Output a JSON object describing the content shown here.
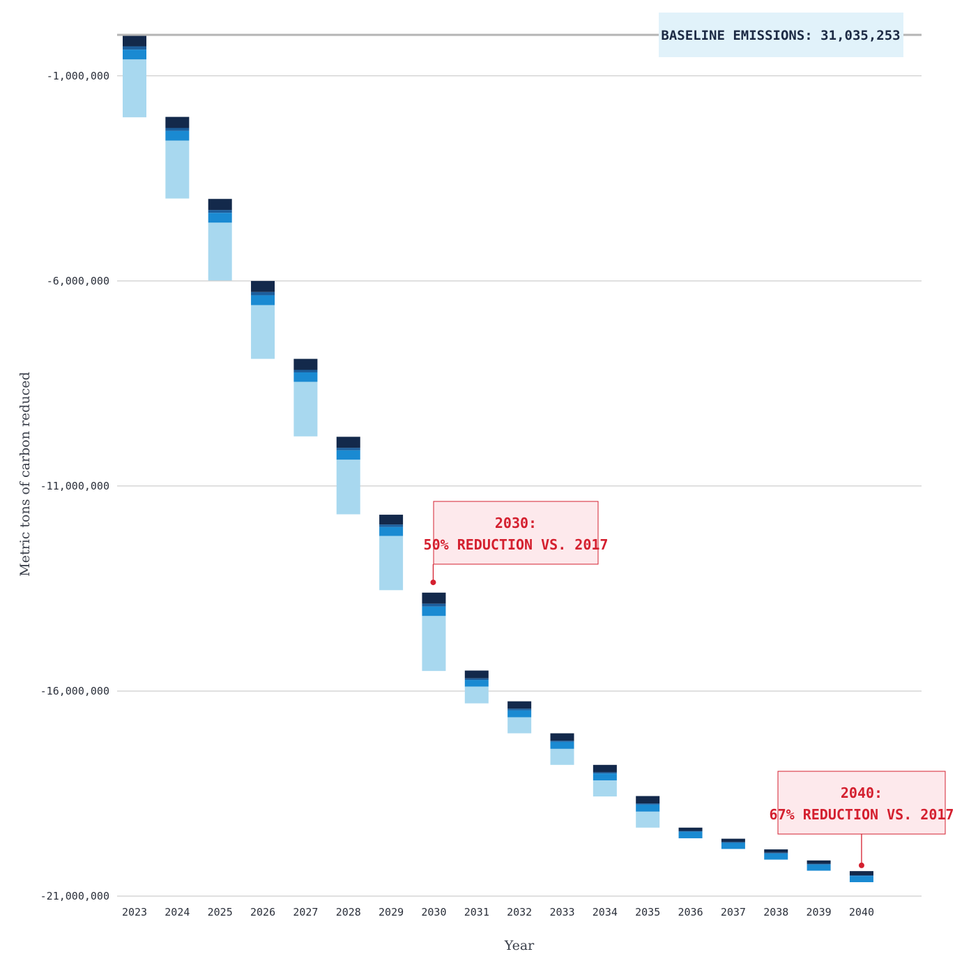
{
  "chart_data": {
    "type": "bar",
    "stacked": true,
    "floating": true,
    "title": "",
    "xlabel": "Year",
    "ylabel": "Metric tons of carbon reduced",
    "ylim": [
      -21000000,
      1000000
    ],
    "yticks": [
      -1000000,
      -6000000,
      -11000000,
      -16000000,
      -21000000
    ],
    "ytick_labels": [
      "-1,000,000",
      "-6,000,000",
      "-11,000,000",
      "-16,000,000",
      "-21,000,000"
    ],
    "grid": true,
    "categories": [
      "2023",
      "2024",
      "2025",
      "2026",
      "2027",
      "2028",
      "2029",
      "2030",
      "2031",
      "2032",
      "2033",
      "2034",
      "2035",
      "2036",
      "2037",
      "2038",
      "2039",
      "2040"
    ],
    "bar_top": [
      0,
      -2000000,
      -4000000,
      -6000000,
      -7900000,
      -9800000,
      -11700000,
      -13600000,
      -15500000,
      -16250000,
      -17030000,
      -17800000,
      -18560000,
      -19330000,
      -19600000,
      -19860000,
      -20130000,
      -20390000
    ],
    "series": [
      {
        "color": "#13294b",
        "values": [
          -280000,
          -270000,
          -270000,
          -270000,
          -270000,
          -270000,
          -240000,
          -270000,
          -190000,
          -180000,
          -180000,
          -180000,
          -180000,
          -80000,
          -80000,
          -80000,
          -80000,
          -100000
        ]
      },
      {
        "color": "#1c5e9c",
        "values": [
          -80000,
          -70000,
          -70000,
          -80000,
          -60000,
          -60000,
          -60000,
          -70000,
          -40000,
          -40000,
          -30000,
          -30000,
          -30000,
          -20000,
          -20000,
          -20000,
          -20000,
          -20000
        ]
      },
      {
        "color": "#1a8ad2",
        "values": [
          -240000,
          -240000,
          -240000,
          -240000,
          -230000,
          -230000,
          -220000,
          -230000,
          -160000,
          -170000,
          -170000,
          -170000,
          -170000,
          -160000,
          -150000,
          -150000,
          -150000,
          -150000
        ]
      },
      {
        "color": "#a8d8ef",
        "values": [
          -1410000,
          -1410000,
          -1410000,
          -1310000,
          -1330000,
          -1330000,
          -1320000,
          -1340000,
          -410000,
          -390000,
          -390000,
          -390000,
          -390000,
          0,
          0,
          0,
          0,
          0
        ]
      }
    ],
    "baseline": {
      "label": "BASELINE EMISSIONS: 31,035,253"
    },
    "annotations": [
      {
        "year": "2030",
        "value": -13350000,
        "line1": "2030:",
        "line2": "50% REDUCTION VS. 2017"
      },
      {
        "year": "2040",
        "value": -20250000,
        "line1": "2040:",
        "line2": "67% REDUCTION VS. 2017"
      }
    ],
    "colors": {
      "grid": "#c2c2c2",
      "baseline_line": "#b5b5b5",
      "baseline_box": "#e1f2fa",
      "callout_border": "#d4202f",
      "callout_fill": "#fde9ec"
    }
  }
}
